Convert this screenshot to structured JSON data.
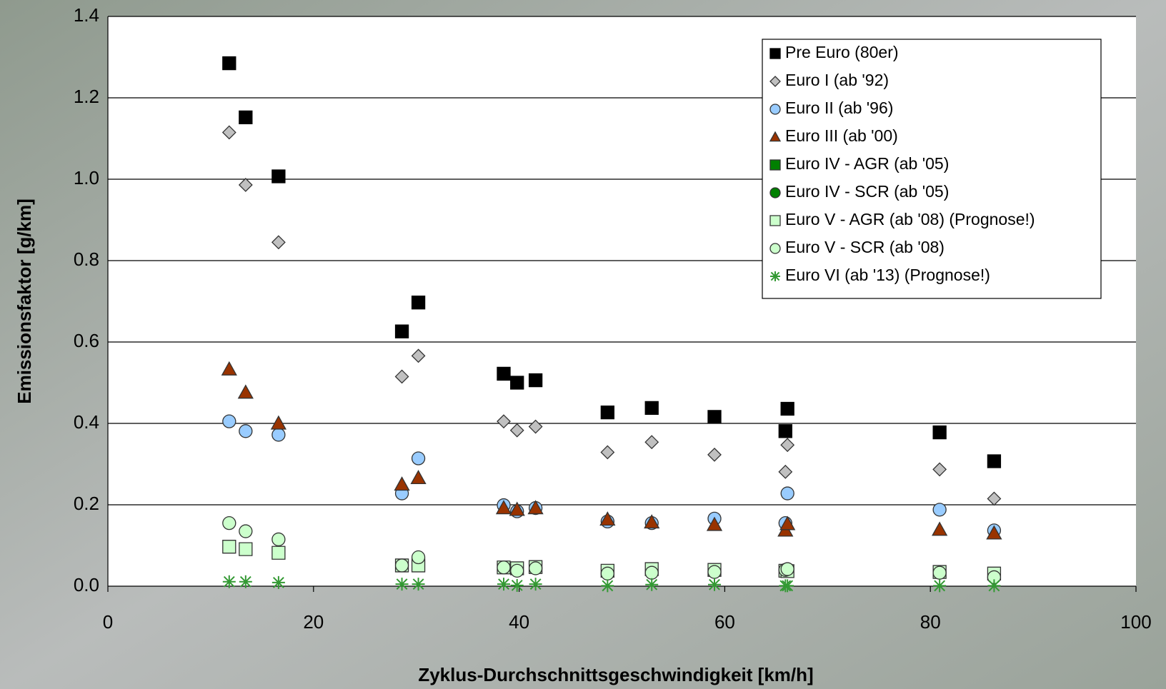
{
  "chart_data": {
    "type": "scatter",
    "xlabel": "Zyklus-Durchschnittsgeschwindigkeit [km/h]",
    "ylabel": "Emissionsfaktor [g/km]",
    "xlim": [
      0,
      100
    ],
    "xticks": [
      0,
      20,
      40,
      60,
      80,
      100
    ],
    "ylim": [
      0,
      1.4
    ],
    "yticks": [
      {
        "value": 0,
        "label": "0.0"
      },
      0.2,
      0.4,
      0.6,
      0.8,
      {
        "value": 1,
        "label": "1.0"
      },
      1.2,
      1.4
    ],
    "grid": true,
    "legend": "upper right",
    "series": [
      {
        "name": "Pre Euro (80er)",
        "color": "#000000",
        "marker": "square",
        "x": [
          11.8,
          13.4,
          16.6,
          28.6,
          30.2,
          38.5,
          39.8,
          41.6,
          48.6,
          52.9,
          59.0,
          65.9,
          66.1,
          80.9,
          86.2
        ],
        "values": [
          1.285,
          1.152,
          1.007,
          0.626,
          0.697,
          0.522,
          0.5,
          0.506,
          0.427,
          0.438,
          0.416,
          0.381,
          0.436,
          0.378,
          0.307
        ]
      },
      {
        "name": "Euro I (ab '92)",
        "color": "#c0c0c0",
        "marker": "diamond",
        "x": [
          11.8,
          13.4,
          16.6,
          28.6,
          30.2,
          38.5,
          39.8,
          41.6,
          48.6,
          52.9,
          59.0,
          65.9,
          66.1,
          80.9,
          86.2
        ],
        "values": [
          1.115,
          0.986,
          0.845,
          0.515,
          0.566,
          0.405,
          0.383,
          0.392,
          0.329,
          0.354,
          0.323,
          0.281,
          0.347,
          0.287,
          0.215
        ]
      },
      {
        "name": "Euro II  (ab '96)",
        "color": "#99ccff",
        "marker": "circle",
        "x": [
          11.8,
          13.4,
          16.6,
          28.6,
          30.2,
          38.5,
          39.8,
          41.6,
          48.6,
          52.9,
          59.0,
          65.9,
          66.1,
          80.9,
          86.2
        ],
        "values": [
          0.405,
          0.381,
          0.372,
          0.228,
          0.314,
          0.199,
          0.184,
          0.192,
          0.159,
          0.155,
          0.166,
          0.155,
          0.228,
          0.188,
          0.137
        ]
      },
      {
        "name": "Euro III (ab '00)",
        "color": "#993300",
        "marker": "triangle",
        "x": [
          11.8,
          13.4,
          16.6,
          28.6,
          30.2,
          38.5,
          39.8,
          41.6,
          48.6,
          52.9,
          59.0,
          65.9,
          66.1,
          80.9,
          86.2
        ],
        "values": [
          0.533,
          0.476,
          0.4,
          0.25,
          0.266,
          0.192,
          0.188,
          0.192,
          0.164,
          0.157,
          0.151,
          0.137,
          0.153,
          0.139,
          0.13
        ]
      },
      {
        "name": "Euro IV - AGR (ab '05)",
        "color": "#008000",
        "marker": "square",
        "x": [],
        "values": []
      },
      {
        "name": "Euro IV - SCR (ab '05)",
        "color": "#008000",
        "marker": "circle",
        "x": [],
        "values": []
      },
      {
        "name": "Euro V - AGR (ab '08) (Prognose!)",
        "color": "#ccffcc",
        "marker": "square",
        "x": [
          11.8,
          13.4,
          16.6,
          28.6,
          30.2,
          38.5,
          39.8,
          41.6,
          48.6,
          52.9,
          59.0,
          65.9,
          66.1,
          80.9,
          86.2
        ],
        "values": [
          0.097,
          0.091,
          0.082,
          0.051,
          0.051,
          0.046,
          0.044,
          0.047,
          0.038,
          0.042,
          0.04,
          0.038,
          0.037,
          0.035,
          0.031
        ]
      },
      {
        "name": "Euro V - SCR (ab '08)",
        "color": "#ccffcc",
        "marker": "circle",
        "x": [
          11.8,
          13.4,
          16.6,
          28.6,
          30.2,
          38.5,
          39.8,
          41.6,
          48.6,
          52.9,
          59.0,
          65.9,
          66.1,
          80.9,
          86.2
        ],
        "values": [
          0.155,
          0.135,
          0.115,
          0.051,
          0.071,
          0.046,
          0.038,
          0.044,
          0.031,
          0.033,
          0.035,
          0.04,
          0.042,
          0.033,
          0.022
        ]
      },
      {
        "name": "Euro VI (ab '13)  (Prognose!)",
        "color": "#339933",
        "marker": "star",
        "x": [
          11.8,
          13.4,
          16.6,
          28.6,
          30.2,
          38.5,
          39.8,
          41.6,
          48.6,
          52.9,
          59.0,
          65.9,
          66.1,
          80.9,
          86.2
        ],
        "values": [
          0.011,
          0.011,
          0.009,
          0.005,
          0.005,
          0.005,
          0.002,
          0.005,
          0.001,
          0.004,
          0.004,
          0.001,
          0.001,
          0.001,
          0.001
        ]
      }
    ]
  }
}
